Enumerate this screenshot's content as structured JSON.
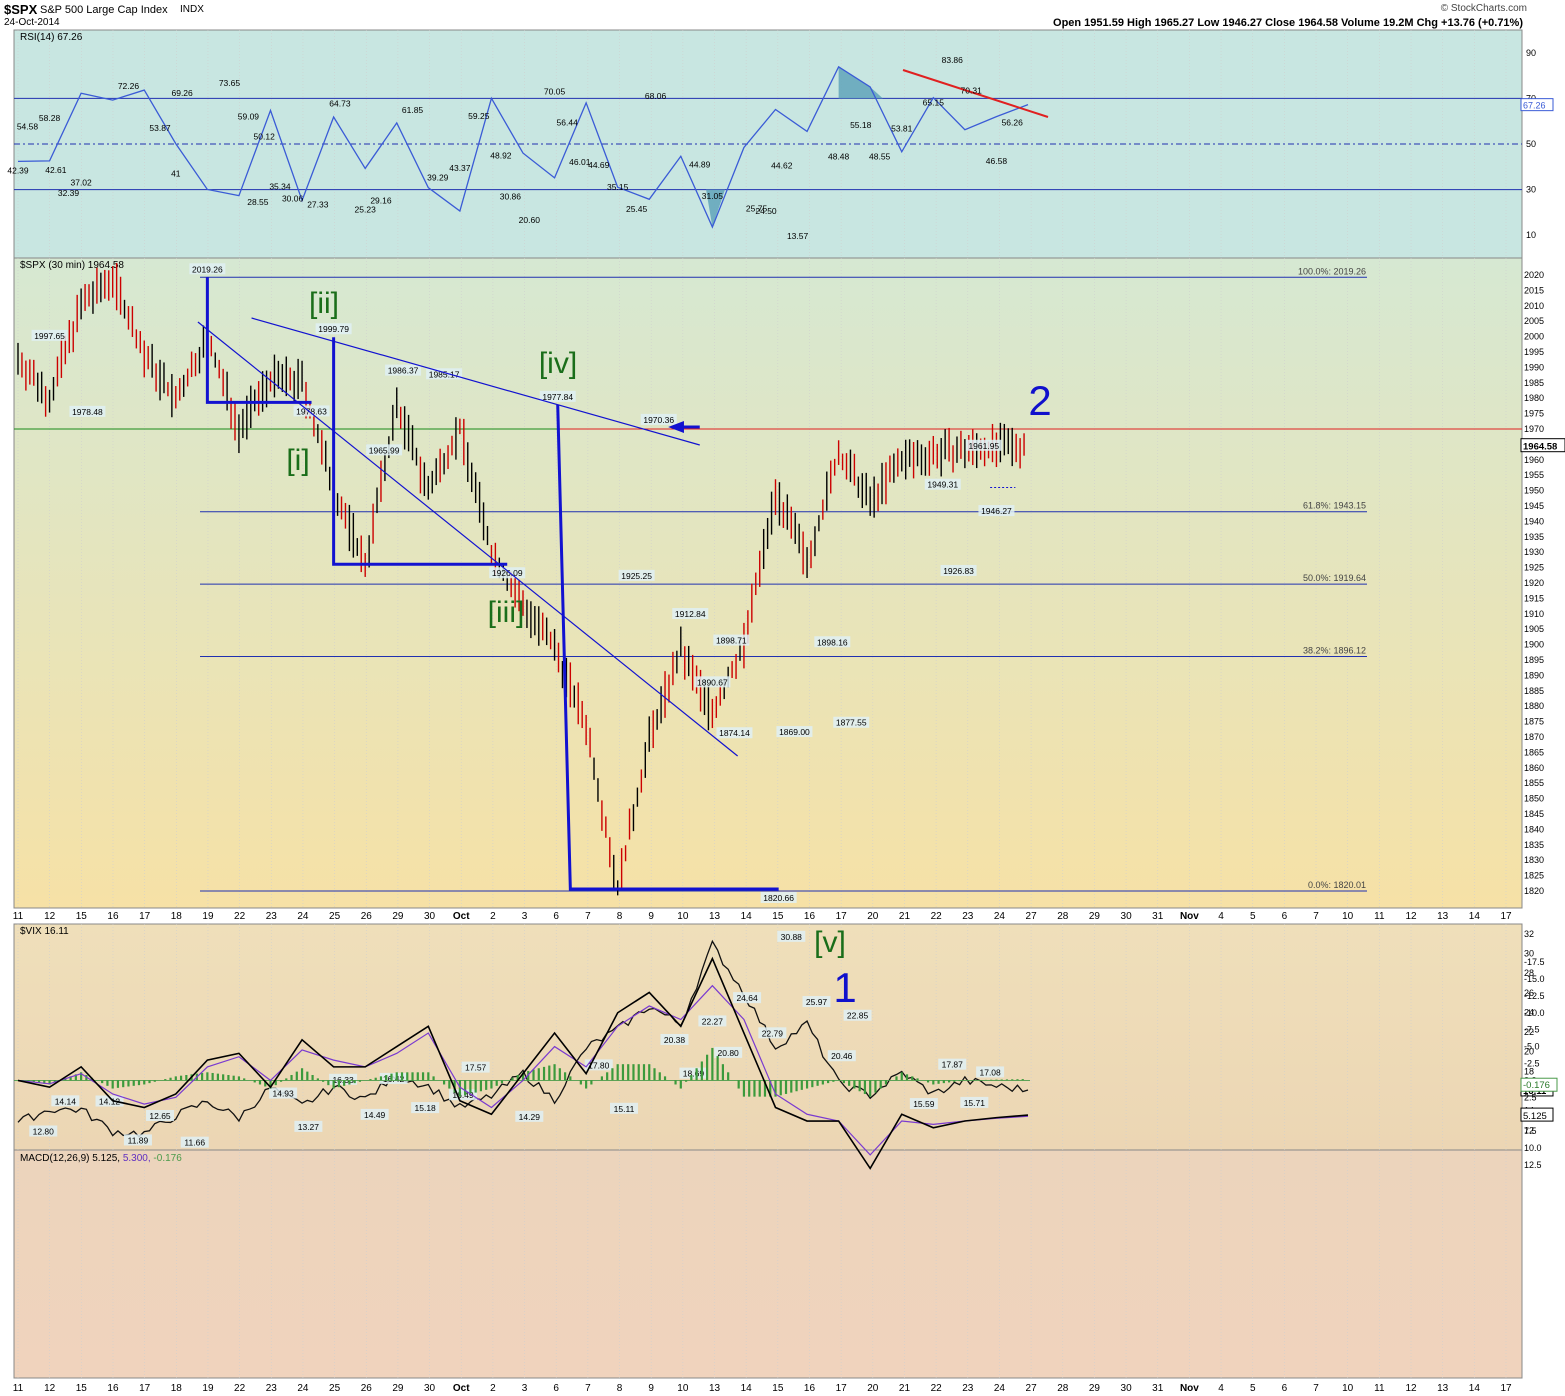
{
  "header": {
    "symbol": "$SPX",
    "name": "S&P 500 Large Cap Index",
    "exchange": "INDX",
    "date": "24-Oct-2014",
    "ohlc": "Open 1951.59  High 1965.27  Low 1946.27  Close 1964.58  Volume 19.2M  Chg +13.76 (+0.71%)",
    "source": "© StockCharts.com"
  },
  "colors": {
    "rsi_bg": "#c9e6e2",
    "price_bg_top": "#d8e6cf",
    "price_bg_bottom": "#f5e2a8",
    "vix_bg": "#ecd9b8",
    "macd_bg": "#efd3bd",
    "rsi_line": "#3a5bd6",
    "bar_up": "#000000",
    "bar_down": "#cc0000",
    "wave_green": "#1a6e1a",
    "wave_blue": "#1010cc",
    "accent_red": "#e02020"
  },
  "x_axis": {
    "labels": [
      "11",
      "12",
      "15",
      "16",
      "17",
      "18",
      "19",
      "22",
      "23",
      "24",
      "25",
      "26",
      "29",
      "30",
      "Oct",
      "2",
      "3",
      "6",
      "7",
      "8",
      "9",
      "10",
      "13",
      "14",
      "15",
      "16",
      "17",
      "20",
      "21",
      "22",
      "23",
      "24",
      "27",
      "28",
      "29",
      "30",
      "31",
      "Nov",
      "4",
      "5",
      "6",
      "7",
      "10",
      "11",
      "12",
      "13",
      "14",
      "17"
    ]
  },
  "chart_data": [
    {
      "type": "line",
      "title": "RSI(14) 67.26",
      "ylim": [
        0,
        100
      ],
      "yticks": [
        10,
        30,
        50,
        70,
        90
      ],
      "current": "67.26",
      "levels": [
        30,
        50,
        70
      ],
      "x": [
        0,
        1,
        2,
        3,
        4,
        5,
        6,
        7,
        8,
        9,
        10,
        11,
        12,
        13,
        14,
        15,
        16,
        17,
        18,
        19,
        20,
        21,
        22,
        23,
        24,
        25,
        26,
        27,
        28,
        29,
        30,
        31,
        32
      ],
      "values": [
        42.39,
        42.61,
        72.26,
        69.26,
        73.65,
        50.12,
        30.06,
        27.33,
        64.73,
        25.23,
        61.85,
        39.29,
        59.25,
        30.86,
        20.6,
        70.05,
        46.01,
        35.15,
        68.06,
        31.05,
        25.75,
        44.62,
        13.57,
        48.48,
        65.15,
        55.5,
        83.86,
        75.0,
        46.58,
        70.31,
        56.26,
        62.0,
        67.26
      ],
      "labels": [
        "42.39",
        "54.58",
        "58.28",
        "32.39",
        "37.02",
        "42.61",
        "72.26",
        "53.87",
        "41",
        "69.26",
        "73.65",
        "59.09",
        "50.12",
        "35.34",
        "28.55",
        "30.06",
        "27.33",
        "64.73",
        "25.23",
        "29.16",
        "61.85",
        "39.29",
        "43.37",
        "59.25",
        "48.92",
        "30.86",
        "20.60",
        "70.05",
        "56.44",
        "46.01",
        "44.69",
        "35.15",
        "25.45",
        "68.06",
        "44.89",
        "31.05",
        "25.75",
        "24.50",
        "44.62",
        "13.57",
        "48.48",
        "55.18",
        "48.55",
        "53.81",
        "65.15",
        "83.86",
        "70.31",
        "46.58",
        "56.26"
      ]
    },
    {
      "type": "bar",
      "title": "$SPX (30 min) 1964.58",
      "ylim": [
        1815,
        2025
      ],
      "yticks": [
        1820,
        1825,
        1830,
        1835,
        1840,
        1845,
        1850,
        1855,
        1860,
        1865,
        1870,
        1875,
        1880,
        1885,
        1890,
        1895,
        1900,
        1905,
        1910,
        1915,
        1920,
        1925,
        1930,
        1935,
        1940,
        1945,
        1950,
        1955,
        1960,
        1965,
        1970,
        1975,
        1980,
        1985,
        1990,
        1995,
        2000,
        2005,
        2010,
        2015,
        2020
      ],
      "current": "1964.58",
      "x": [
        0,
        1,
        2,
        3,
        4,
        5,
        6,
        7,
        8,
        9,
        10,
        11,
        12,
        13,
        14,
        15,
        16,
        17,
        18,
        19,
        20,
        21,
        22,
        23,
        24,
        25,
        26,
        27,
        28,
        29,
        30,
        31,
        32
      ],
      "values": [
        1993,
        1980,
        2010,
        2019.26,
        1994,
        1979,
        1999.79,
        1970,
        1986.37,
        1985.17,
        1950,
        1926.09,
        1977.84,
        1950,
        1970.36,
        1930,
        1912.84,
        1898.71,
        1874.14,
        1820.66,
        1869,
        1898.16,
        1877.55,
        1900,
        1949.31,
        1926.83,
        1961.95,
        1946.27,
        1960,
        1962,
        1963,
        1964,
        1964.58
      ],
      "labels": [
        "1997.65",
        "1978.48",
        "2019.26",
        "1978.63",
        "1999.79",
        "1965.99",
        "1986.37",
        "1985.17",
        "1926.09",
        "1977.84",
        "1925.25",
        "1970.36",
        "1912.84",
        "1898.71",
        "1890.67",
        "1874.14",
        "1820.66",
        "1869.00",
        "1898.16",
        "1877.55",
        "1949.31",
        "1926.83",
        "1961.95",
        "1946.27"
      ],
      "fibonacci": [
        {
          "label": "100.0%: 2019.26",
          "value": 2019.26
        },
        {
          "label": "61.8%: 1943.15",
          "value": 1943.15
        },
        {
          "label": "50.0%: 1919.64",
          "value": 1919.64
        },
        {
          "label": "38.2%: 1896.12",
          "value": 1896.12
        },
        {
          "label": "0.0%: 1820.01",
          "value": 1820.01
        }
      ],
      "waves": [
        "[i]",
        "[ii]",
        "[iii]",
        "[iv]",
        "[v]",
        "1",
        "2"
      ],
      "reference_level": 1970
    },
    {
      "type": "line",
      "title": "$VIX 16.11",
      "ylim": [
        10,
        33
      ],
      "yticks": [
        12,
        14,
        16,
        18,
        20,
        22,
        24,
        26,
        28,
        30,
        32
      ],
      "current": "16.11",
      "x": [
        0,
        1,
        2,
        3,
        4,
        5,
        6,
        7,
        8,
        9,
        10,
        11,
        12,
        13,
        14,
        15,
        16,
        17,
        18,
        19,
        20,
        21,
        22,
        23,
        24,
        25,
        26,
        27,
        28,
        29,
        30,
        31,
        32
      ],
      "values": [
        12.8,
        14.14,
        14.12,
        11.89,
        11.66,
        13.5,
        14.93,
        13.27,
        16.33,
        14.49,
        16.42,
        15.18,
        17.57,
        16.49,
        14.29,
        15.5,
        17.8,
        15.11,
        20.38,
        22.27,
        24.64,
        22.79,
        30.88,
        25.97,
        20.46,
        22.85,
        16.8,
        15.59,
        17.87,
        15.71,
        17.08,
        16.5,
        16.11
      ],
      "labels": [
        "14.14",
        "12.80",
        "14.12",
        "12.65",
        "11.89",
        "11.66",
        "14.93",
        "13.27",
        "16.33",
        "14.49",
        "16.42",
        "15.18",
        "17.57",
        "16.49",
        "14.29",
        "17.80",
        "15.11",
        "20.38",
        "18.69",
        "22.27",
        "20.80",
        "24.64",
        "22.79",
        "30.88",
        "25.97",
        "22.85",
        "20.46",
        "17.87",
        "15.59",
        "17.08",
        "15.71"
      ]
    },
    {
      "type": "line",
      "title": "MACD(12,26,9)",
      "ylim": [
        -19,
        14.5
      ],
      "yticks": [
        12.5,
        10.0,
        7.5,
        5.0,
        2.5,
        0.0,
        -2.5,
        -5.0,
        -7.5,
        -10.0,
        -12.5,
        -15.0,
        -17.5
      ],
      "title_values": {
        "macd": "5.125",
        "signal": "5.300",
        "histogram": "-0.176"
      },
      "current": {
        "macd": "5.125",
        "signal": "5.300",
        "histogram": "-0.176"
      },
      "x": [
        0,
        1,
        2,
        3,
        4,
        5,
        6,
        7,
        8,
        9,
        10,
        11,
        12,
        13,
        14,
        15,
        16,
        17,
        18,
        19,
        20,
        21,
        22,
        23,
        24,
        25,
        26,
        27,
        28,
        29,
        30,
        31,
        32
      ],
      "series": [
        {
          "name": "MACD",
          "values": [
            0,
            1,
            -2,
            3,
            4,
            2,
            -3,
            -4,
            1,
            -6,
            -2,
            -2,
            -5,
            -8,
            3,
            5,
            -1,
            -7,
            -1,
            -10,
            -13,
            -8,
            -18,
            -7,
            4,
            6,
            6,
            13,
            5,
            7,
            6,
            5.5,
            5.125
          ]
        },
        {
          "name": "Signal",
          "values": [
            0,
            0.5,
            -1,
            2,
            3.5,
            2.5,
            -2,
            -3.5,
            0,
            -4.5,
            -3,
            -2,
            -4,
            -7,
            1,
            4,
            0,
            -5,
            -2,
            -8,
            -11,
            -9,
            -14,
            -9,
            2,
            5,
            6,
            11,
            6,
            6.5,
            6,
            5.6,
            5.3
          ]
        }
      ]
    }
  ]
}
